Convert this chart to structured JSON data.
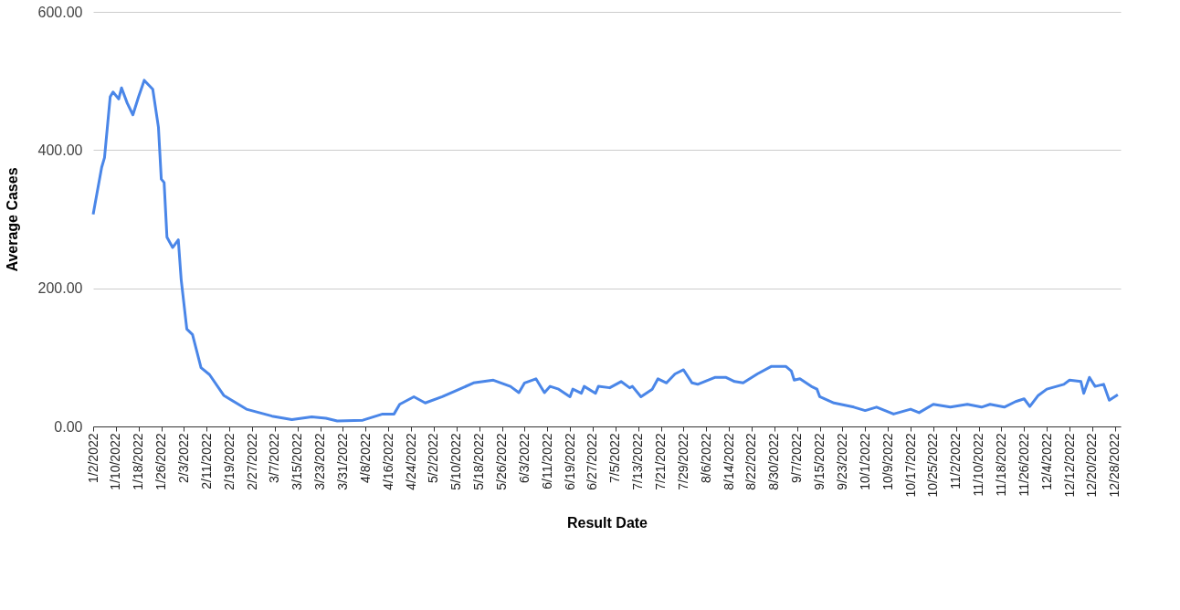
{
  "chart_data": {
    "type": "line",
    "xlabel": "Result Date",
    "ylabel": "Average Cases",
    "x": [
      "2022-01-02",
      "2022-01-05",
      "2022-01-06",
      "2022-01-08",
      "2022-01-09",
      "2022-01-11",
      "2022-01-12",
      "2022-01-14",
      "2022-01-16",
      "2022-01-18",
      "2022-01-20",
      "2022-01-23",
      "2022-01-25",
      "2022-01-26",
      "2022-01-27",
      "2022-01-28",
      "2022-01-30",
      "2022-02-01",
      "2022-02-02",
      "2022-02-04",
      "2022-02-06",
      "2022-02-09",
      "2022-02-12",
      "2022-02-17",
      "2022-02-25",
      "2022-03-06",
      "2022-03-13",
      "2022-03-20",
      "2022-03-25",
      "2022-03-29",
      "2022-04-07",
      "2022-04-14",
      "2022-04-18",
      "2022-04-20",
      "2022-04-25",
      "2022-04-29",
      "2022-05-05",
      "2022-05-10",
      "2022-05-16",
      "2022-05-23",
      "2022-05-29",
      "2022-06-01",
      "2022-06-03",
      "2022-06-07",
      "2022-06-10",
      "2022-06-12",
      "2022-06-15",
      "2022-06-19",
      "2022-06-20",
      "2022-06-23",
      "2022-06-24",
      "2022-06-28",
      "2022-06-29",
      "2022-07-03",
      "2022-07-07",
      "2022-07-10",
      "2022-07-11",
      "2022-07-14",
      "2022-07-18",
      "2022-07-20",
      "2022-07-23",
      "2022-07-26",
      "2022-07-29",
      "2022-08-01",
      "2022-08-03",
      "2022-08-09",
      "2022-08-13",
      "2022-08-16",
      "2022-08-19",
      "2022-08-24",
      "2022-08-29",
      "2022-09-03",
      "2022-09-05",
      "2022-09-06",
      "2022-09-08",
      "2022-09-12",
      "2022-09-14",
      "2022-09-15",
      "2022-09-20",
      "2022-09-27",
      "2022-10-01",
      "2022-10-05",
      "2022-10-08",
      "2022-10-11",
      "2022-10-17",
      "2022-10-20",
      "2022-10-25",
      "2022-10-31",
      "2022-11-06",
      "2022-11-11",
      "2022-11-14",
      "2022-11-19",
      "2022-11-23",
      "2022-11-26",
      "2022-11-28",
      "2022-12-01",
      "2022-12-04",
      "2022-12-10",
      "2022-12-12",
      "2022-12-16",
      "2022-12-17",
      "2022-12-19",
      "2022-12-21",
      "2022-12-24",
      "2022-12-26",
      "2022-12-29"
    ],
    "series": [
      {
        "color": "#4a86e8",
        "values": [
          307,
          375,
          389,
          477,
          484,
          474,
          490,
          468,
          451,
          477,
          501,
          488,
          433,
          358,
          353,
          274,
          259,
          270,
          213,
          141,
          133,
          85,
          75,
          45,
          25,
          15,
          10,
          14,
          12,
          8,
          9,
          18,
          18,
          32,
          43,
          34,
          43,
          52,
          63,
          67,
          58,
          49,
          63,
          69,
          49,
          58,
          54,
          43,
          54,
          48,
          58,
          48,
          58,
          56,
          65,
          56,
          58,
          43,
          54,
          69,
          63,
          76,
          82,
          63,
          61,
          71,
          71,
          65,
          63,
          76,
          87,
          87,
          80,
          67,
          69,
          58,
          54,
          43,
          34,
          28,
          23,
          28,
          23,
          18,
          25,
          20,
          32,
          28,
          32,
          28,
          32,
          28,
          36,
          40,
          29,
          45,
          54,
          61,
          67,
          65,
          48,
          71,
          58,
          61,
          38,
          46
        ]
      }
    ],
    "xlim": [
      "2022-01-02",
      "2022-12-30"
    ],
    "xticks": [
      {
        "value": "2022-01-02",
        "label": "1/2/2022"
      },
      {
        "value": "2022-01-10",
        "label": "1/10/2022"
      },
      {
        "value": "2022-01-18",
        "label": "1/18/2022"
      },
      {
        "value": "2022-01-26",
        "label": "1/26/2022"
      },
      {
        "value": "2022-02-03",
        "label": "2/3/2022"
      },
      {
        "value": "2022-02-11",
        "label": "2/11/2022"
      },
      {
        "value": "2022-02-19",
        "label": "2/19/2022"
      },
      {
        "value": "2022-02-27",
        "label": "2/27/2022"
      },
      {
        "value": "2022-03-07",
        "label": "3/7/2022"
      },
      {
        "value": "2022-03-15",
        "label": "3/15/2022"
      },
      {
        "value": "2022-03-23",
        "label": "3/23/2022"
      },
      {
        "value": "2022-03-31",
        "label": "3/31/2022"
      },
      {
        "value": "2022-04-08",
        "label": "4/8/2022"
      },
      {
        "value": "2022-04-16",
        "label": "4/16/2022"
      },
      {
        "value": "2022-04-24",
        "label": "4/24/2022"
      },
      {
        "value": "2022-05-02",
        "label": "5/2/2022"
      },
      {
        "value": "2022-05-10",
        "label": "5/10/2022"
      },
      {
        "value": "2022-05-18",
        "label": "5/18/2022"
      },
      {
        "value": "2022-05-26",
        "label": "5/26/2022"
      },
      {
        "value": "2022-06-03",
        "label": "6/3/2022"
      },
      {
        "value": "2022-06-11",
        "label": "6/11/2022"
      },
      {
        "value": "2022-06-19",
        "label": "6/19/2022"
      },
      {
        "value": "2022-06-27",
        "label": "6/27/2022"
      },
      {
        "value": "2022-07-05",
        "label": "7/5/2022"
      },
      {
        "value": "2022-07-13",
        "label": "7/13/2022"
      },
      {
        "value": "2022-07-21",
        "label": "7/21/2022"
      },
      {
        "value": "2022-07-29",
        "label": "7/29/2022"
      },
      {
        "value": "2022-08-06",
        "label": "8/6/2022"
      },
      {
        "value": "2022-08-14",
        "label": "8/14/2022"
      },
      {
        "value": "2022-08-22",
        "label": "8/22/2022"
      },
      {
        "value": "2022-08-30",
        "label": "8/30/2022"
      },
      {
        "value": "2022-09-07",
        "label": "9/7/2022"
      },
      {
        "value": "2022-09-15",
        "label": "9/15/2022"
      },
      {
        "value": "2022-09-23",
        "label": "9/23/2022"
      },
      {
        "value": "2022-10-01",
        "label": "10/1/2022"
      },
      {
        "value": "2022-10-09",
        "label": "10/9/2022"
      },
      {
        "value": "2022-10-17",
        "label": "10/17/2022"
      },
      {
        "value": "2022-10-25",
        "label": "10/25/2022"
      },
      {
        "value": "2022-11-02",
        "label": "11/2/2022"
      },
      {
        "value": "2022-11-10",
        "label": "11/10/2022"
      },
      {
        "value": "2022-11-18",
        "label": "11/18/2022"
      },
      {
        "value": "2022-11-26",
        "label": "11/26/2022"
      },
      {
        "value": "2022-12-04",
        "label": "12/4/2022"
      },
      {
        "value": "2022-12-12",
        "label": "12/12/2022"
      },
      {
        "value": "2022-12-20",
        "label": "12/20/2022"
      },
      {
        "value": "2022-12-28",
        "label": "12/28/2022"
      }
    ],
    "ylim": [
      0,
      600
    ],
    "yticks": [
      {
        "value": 0,
        "label": "0.00"
      },
      {
        "value": 200,
        "label": "200.00"
      },
      {
        "value": 400,
        "label": "400.00"
      },
      {
        "value": 600,
        "label": "600.00"
      }
    ],
    "grid": "y",
    "marker": "none",
    "line_style": "solid"
  }
}
